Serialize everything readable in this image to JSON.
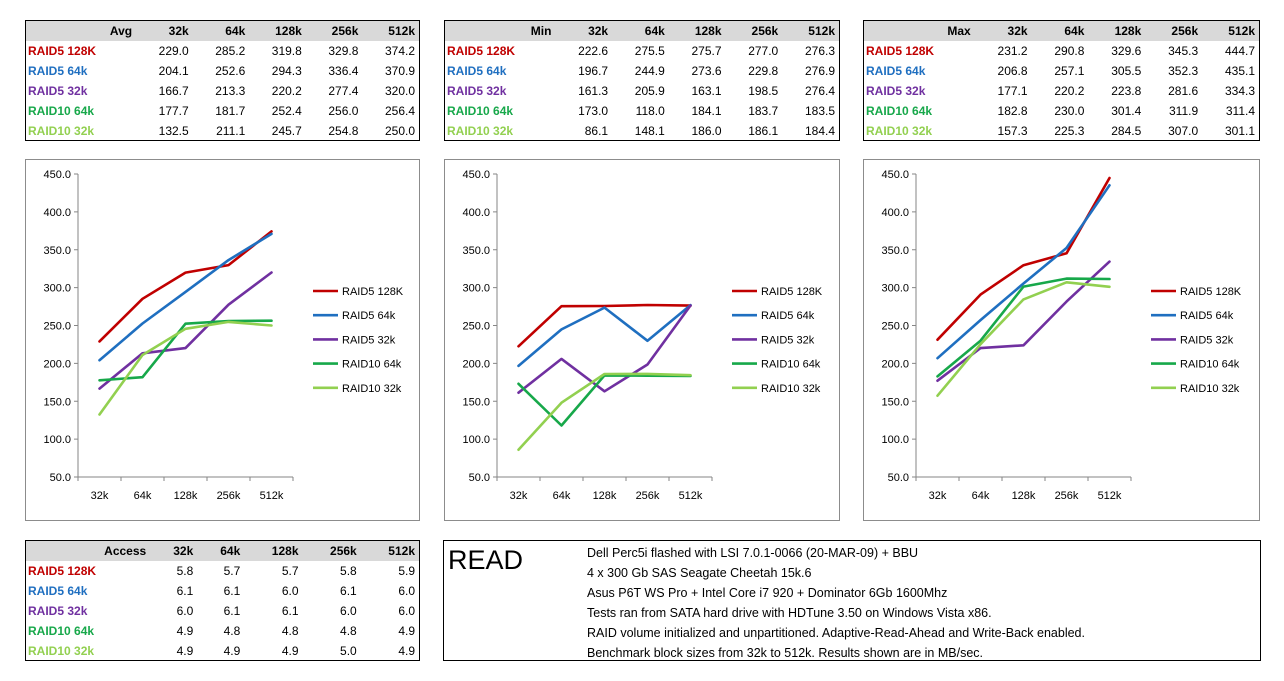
{
  "series_colors": {
    "RAID5 128K": "#c00000",
    "RAID5 64k": "#1f6fc0",
    "RAID5 32k": "#7030a0",
    "RAID10 64k": "#17a84a",
    "RAID10 32k": "#92d050"
  },
  "tables": [
    {
      "title": "Avg",
      "columns": [
        "32k",
        "64k",
        "128k",
        "256k",
        "512k"
      ],
      "rows": [
        {
          "label": "RAID5 128K",
          "values": [
            "229.0",
            "285.2",
            "319.8",
            "329.8",
            "374.2"
          ]
        },
        {
          "label": "RAID5 64k",
          "values": [
            "204.1",
            "252.6",
            "294.3",
            "336.4",
            "370.9"
          ]
        },
        {
          "label": "RAID5 32k",
          "values": [
            "166.7",
            "213.3",
            "220.2",
            "277.4",
            "320.0"
          ]
        },
        {
          "label": "RAID10 64k",
          "values": [
            "177.7",
            "181.7",
            "252.4",
            "256.0",
            "256.4"
          ]
        },
        {
          "label": "RAID10 32k",
          "values": [
            "132.5",
            "211.1",
            "245.7",
            "254.8",
            "250.0"
          ]
        }
      ]
    },
    {
      "title": "Min",
      "columns": [
        "32k",
        "64k",
        "128k",
        "256k",
        "512k"
      ],
      "rows": [
        {
          "label": "RAID5 128K",
          "values": [
            "222.6",
            "275.5",
            "275.7",
            "277.0",
            "276.3"
          ]
        },
        {
          "label": "RAID5 64k",
          "values": [
            "196.7",
            "244.9",
            "273.6",
            "229.8",
            "276.9"
          ]
        },
        {
          "label": "RAID5 32k",
          "values": [
            "161.3",
            "205.9",
            "163.1",
            "198.5",
            "276.4"
          ]
        },
        {
          "label": "RAID10 64k",
          "values": [
            "173.0",
            "118.0",
            "184.1",
            "183.7",
            "183.5"
          ]
        },
        {
          "label": "RAID10 32k",
          "values": [
            "86.1",
            "148.1",
            "186.0",
            "186.1",
            "184.4"
          ]
        }
      ]
    },
    {
      "title": "Max",
      "columns": [
        "32k",
        "64k",
        "128k",
        "256k",
        "512k"
      ],
      "rows": [
        {
          "label": "RAID5 128K",
          "values": [
            "231.2",
            "290.8",
            "329.6",
            "345.3",
            "444.7"
          ]
        },
        {
          "label": "RAID5 64k",
          "values": [
            "206.8",
            "257.1",
            "305.5",
            "352.3",
            "435.1"
          ]
        },
        {
          "label": "RAID5 32k",
          "values": [
            "177.1",
            "220.2",
            "223.8",
            "281.6",
            "334.3"
          ]
        },
        {
          "label": "RAID10 64k",
          "values": [
            "182.8",
            "230.0",
            "301.4",
            "311.9",
            "311.4"
          ]
        },
        {
          "label": "RAID10 32k",
          "values": [
            "157.3",
            "225.3",
            "284.5",
            "307.0",
            "301.1"
          ]
        }
      ]
    },
    {
      "title": "Access",
      "columns": [
        "32k",
        "64k",
        "128k",
        "256k",
        "512k"
      ],
      "rows": [
        {
          "label": "RAID5 128K",
          "values": [
            "5.8",
            "5.7",
            "5.7",
            "5.8",
            "5.9"
          ]
        },
        {
          "label": "RAID5 64k",
          "values": [
            "6.1",
            "6.1",
            "6.0",
            "6.1",
            "6.0"
          ]
        },
        {
          "label": "RAID5 32k",
          "values": [
            "6.0",
            "6.1",
            "6.1",
            "6.0",
            "6.0"
          ]
        },
        {
          "label": "RAID10 64k",
          "values": [
            "4.9",
            "4.8",
            "4.8",
            "4.8",
            "4.9"
          ]
        },
        {
          "label": "RAID10 32k",
          "values": [
            "4.9",
            "4.9",
            "4.9",
            "5.0",
            "4.9"
          ]
        }
      ]
    }
  ],
  "chart_data": [
    {
      "type": "line",
      "x": [
        "32k",
        "64k",
        "128k",
        "256k",
        "512k"
      ],
      "ylim": [
        50,
        450
      ],
      "yticks": [
        "50.0",
        "100.0",
        "150.0",
        "200.0",
        "250.0",
        "300.0",
        "350.0",
        "400.0",
        "450.0"
      ],
      "legend": "right",
      "series": [
        {
          "name": "RAID5 128K",
          "values": [
            229.0,
            285.2,
            319.8,
            329.8,
            374.2
          ]
        },
        {
          "name": "RAID5 64k",
          "values": [
            204.1,
            252.6,
            294.3,
            336.4,
            370.9
          ]
        },
        {
          "name": "RAID5 32k",
          "values": [
            166.7,
            213.3,
            220.2,
            277.4,
            320.0
          ]
        },
        {
          "name": "RAID10 64k",
          "values": [
            177.7,
            181.7,
            252.4,
            256.0,
            256.4
          ]
        },
        {
          "name": "RAID10 32k",
          "values": [
            132.5,
            211.1,
            245.7,
            254.8,
            250.0
          ]
        }
      ]
    },
    {
      "type": "line",
      "x": [
        "32k",
        "64k",
        "128k",
        "256k",
        "512k"
      ],
      "ylim": [
        50,
        450
      ],
      "yticks": [
        "50.0",
        "100.0",
        "150.0",
        "200.0",
        "250.0",
        "300.0",
        "350.0",
        "400.0",
        "450.0"
      ],
      "legend": "right",
      "series": [
        {
          "name": "RAID5 128K",
          "values": [
            222.6,
            275.5,
            275.7,
            277.0,
            276.3
          ]
        },
        {
          "name": "RAID5 64k",
          "values": [
            196.7,
            244.9,
            273.6,
            229.8,
            276.9
          ]
        },
        {
          "name": "RAID5 32k",
          "values": [
            161.3,
            205.9,
            163.1,
            198.5,
            276.4
          ]
        },
        {
          "name": "RAID10 64k",
          "values": [
            173.0,
            118.0,
            184.1,
            183.7,
            183.5
          ]
        },
        {
          "name": "RAID10 32k",
          "values": [
            86.1,
            148.1,
            186.0,
            186.1,
            184.4
          ]
        }
      ]
    },
    {
      "type": "line",
      "x": [
        "32k",
        "64k",
        "128k",
        "256k",
        "512k"
      ],
      "ylim": [
        50,
        450
      ],
      "yticks": [
        "50.0",
        "100.0",
        "150.0",
        "200.0",
        "250.0",
        "300.0",
        "350.0",
        "400.0",
        "450.0"
      ],
      "legend": "right",
      "series": [
        {
          "name": "RAID5 128K",
          "values": [
            231.2,
            290.8,
            329.6,
            345.3,
            444.7
          ]
        },
        {
          "name": "RAID5 64k",
          "values": [
            206.8,
            257.1,
            305.5,
            352.3,
            435.1
          ]
        },
        {
          "name": "RAID5 32k",
          "values": [
            177.1,
            220.2,
            223.8,
            281.6,
            334.3
          ]
        },
        {
          "name": "RAID10 64k",
          "values": [
            182.8,
            230.0,
            301.4,
            311.9,
            311.4
          ]
        },
        {
          "name": "RAID10 32k",
          "values": [
            157.3,
            225.3,
            284.5,
            307.0,
            301.1
          ]
        }
      ]
    }
  ],
  "info": {
    "heading": "READ",
    "lines": [
      "Dell Perc5i flashed with LSI 7.0.1-0066 (20-MAR-09) + BBU",
      "4 x 300 Gb SAS Seagate Cheetah 15k.6",
      "Asus P6T WS Pro + Intel Core i7 920 + Dominator 6Gb 1600Mhz",
      "Tests ran from SATA hard drive with HDTune 3.50 on Windows Vista x86.",
      "RAID volume initialized and unpartitioned. Adaptive-Read-Ahead and Write-Back enabled.",
      "Benchmark block sizes from 32k to 512k. Results shown are in MB/sec."
    ]
  }
}
